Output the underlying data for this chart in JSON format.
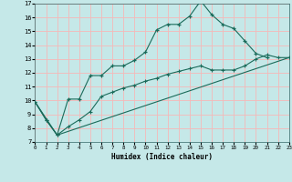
{
  "xlabel": "Humidex (Indice chaleur)",
  "bg_color": "#c5e8e8",
  "grid_color": "#f5b8b8",
  "line_color": "#1a6b5a",
  "x_min": 0,
  "x_max": 23,
  "y_min": 7,
  "y_max": 17,
  "line1_x": [
    0,
    1,
    2,
    3,
    4,
    5,
    6,
    7,
    8,
    9,
    10,
    11,
    12,
    13,
    14,
    15,
    16,
    17,
    18,
    19,
    20,
    21
  ],
  "line1_y": [
    9.9,
    8.6,
    7.5,
    10.1,
    10.1,
    11.8,
    11.8,
    12.5,
    12.5,
    12.9,
    13.5,
    15.1,
    15.5,
    15.5,
    16.1,
    17.2,
    16.2,
    15.5,
    15.2,
    14.3,
    13.4,
    13.1
  ],
  "line2_x": [
    0,
    1,
    2,
    3,
    4,
    5,
    6,
    7,
    8,
    9,
    10,
    11,
    12,
    13,
    14,
    15,
    16,
    17,
    18,
    19,
    20,
    21,
    22,
    23
  ],
  "line2_y": [
    9.9,
    8.6,
    7.5,
    8.1,
    8.6,
    9.2,
    10.3,
    10.6,
    10.9,
    11.1,
    11.4,
    11.6,
    11.9,
    12.1,
    12.3,
    12.5,
    12.2,
    12.2,
    12.2,
    12.5,
    13.0,
    13.3,
    13.1,
    13.1
  ],
  "line3_x": [
    0,
    2,
    23
  ],
  "line3_y": [
    9.9,
    7.5,
    13.1
  ]
}
